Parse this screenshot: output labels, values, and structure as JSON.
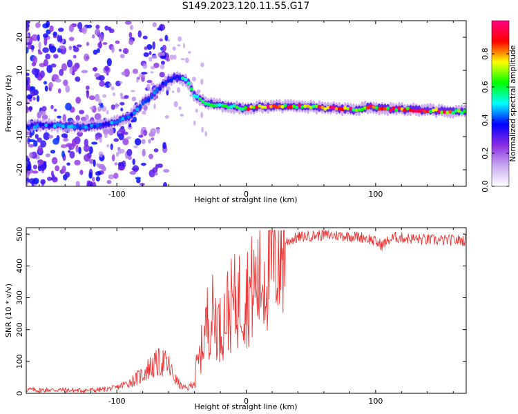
{
  "figure": {
    "title": "S149.2023.120.11.55.G17"
  },
  "chart_data": [
    {
      "type": "heatmap",
      "xlabel": "Height of straight line (km)",
      "ylabel": "Frequency (Hz)",
      "xlim": [
        -170,
        170
      ],
      "ylim": [
        -25,
        25
      ],
      "x_ticks": [
        -100,
        0,
        100
      ],
      "y_ticks": [
        -20,
        -10,
        0,
        10,
        20
      ],
      "colorbar": {
        "label": "Normalized spectral amplitude",
        "range": [
          0,
          1
        ],
        "ticks": [
          0.0,
          0.2,
          0.4,
          0.6,
          0.8
        ],
        "tick_labels": [
          "0.0",
          "0.2",
          "0.4",
          "0.6",
          "0.8"
        ],
        "colors": [
          "#ffffff",
          "#c8a8f0",
          "#8a2be2",
          "#0000ff",
          "#00ffff",
          "#00ff00",
          "#ffff00",
          "#ff0000",
          "#ff0080"
        ]
      },
      "ridge_frequency": {
        "x": [
          -170,
          -150,
          -130,
          -120,
          -110,
          -100,
          -90,
          -85,
          -80,
          -75,
          -70,
          -65,
          -60,
          -55,
          -50,
          -45,
          -40,
          -35,
          -30,
          -20,
          -10,
          0,
          10,
          30,
          50,
          70,
          85,
          95,
          105,
          120,
          140,
          160,
          170
        ],
        "y": [
          -7,
          -6.5,
          -7,
          -7,
          -6.5,
          -5.5,
          -4,
          -2,
          0,
          1.5,
          3.5,
          5.5,
          7,
          8,
          7.5,
          6.5,
          2.5,
          1,
          0,
          -0.5,
          -1,
          -1.5,
          -1,
          -0.8,
          -1,
          -1.5,
          -2,
          -1,
          -1.5,
          -1.8,
          -2,
          -2.5,
          -2.5
        ]
      }
    },
    {
      "type": "line",
      "xlabel": "Height of straight line (km)",
      "ylabel": "SNR (10 * v/v)",
      "xlim": [
        -170,
        170
      ],
      "ylim": [
        0,
        520
      ],
      "x_ticks": [
        -100,
        0,
        100
      ],
      "y_ticks": [
        0,
        100,
        200,
        300,
        400,
        500
      ],
      "series": [
        {
          "color": "#ee3333",
          "x": [
            -170,
            -160,
            -150,
            -140,
            -130,
            -120,
            -110,
            -100,
            -90,
            -85,
            -80,
            -75,
            -70,
            -65,
            -60,
            -55,
            -50,
            -45,
            -40,
            -35,
            -30,
            -25,
            -20,
            -15,
            -10,
            -5,
            0,
            5,
            10,
            15,
            20,
            25,
            30,
            40,
            50,
            60,
            70,
            80,
            90,
            95,
            100,
            105,
            110,
            115,
            120,
            130,
            140,
            150,
            160,
            170
          ],
          "y": [
            12,
            10,
            11,
            10,
            9,
            10,
            12,
            18,
            35,
            45,
            60,
            80,
            90,
            100,
            85,
            45,
            20,
            15,
            40,
            130,
            230,
            250,
            200,
            260,
            280,
            300,
            310,
            330,
            350,
            380,
            420,
            450,
            475,
            490,
            495,
            497,
            495,
            494,
            490,
            485,
            475,
            465,
            480,
            490,
            488,
            485,
            482,
            480,
            481,
            480
          ]
        }
      ]
    }
  ]
}
